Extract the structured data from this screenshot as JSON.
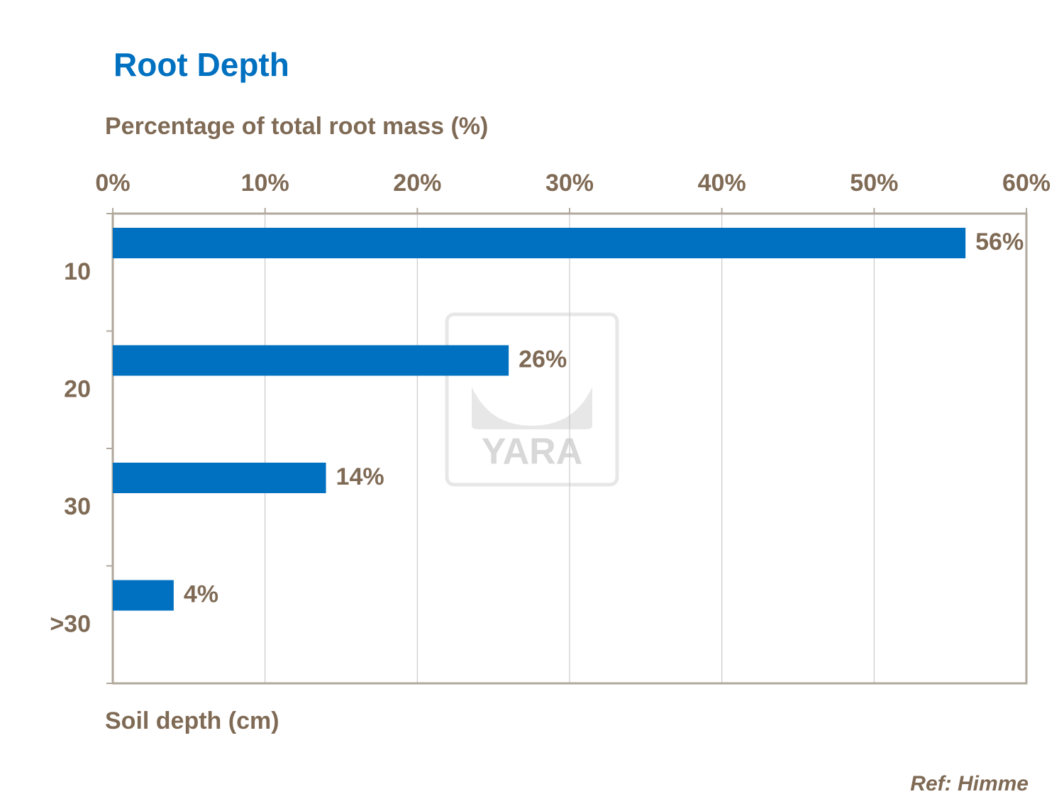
{
  "chart_data": {
    "type": "bar",
    "orientation": "horizontal",
    "title": "Root Depth",
    "x_label": "Percentage of total root mass (%)",
    "y_label": "Soil depth (cm)",
    "categories": [
      "10",
      "20",
      "30",
      ">30"
    ],
    "values": [
      56,
      26,
      14,
      4
    ],
    "value_labels": [
      "56%",
      "26%",
      "14%",
      "4%"
    ],
    "color": "#0070c0",
    "xlim": [
      0,
      60
    ],
    "xticks": [
      {
        "value": 0,
        "label": "0%"
      },
      {
        "value": 10,
        "label": "10%"
      },
      {
        "value": 20,
        "label": "20%"
      },
      {
        "value": 30,
        "label": "30%"
      },
      {
        "value": 40,
        "label": "40%"
      },
      {
        "value": 50,
        "label": "50%"
      },
      {
        "value": 60,
        "label": "60%"
      }
    ],
    "grid": true,
    "watermark": "YARA",
    "annotation": "Ref: Himme"
  }
}
